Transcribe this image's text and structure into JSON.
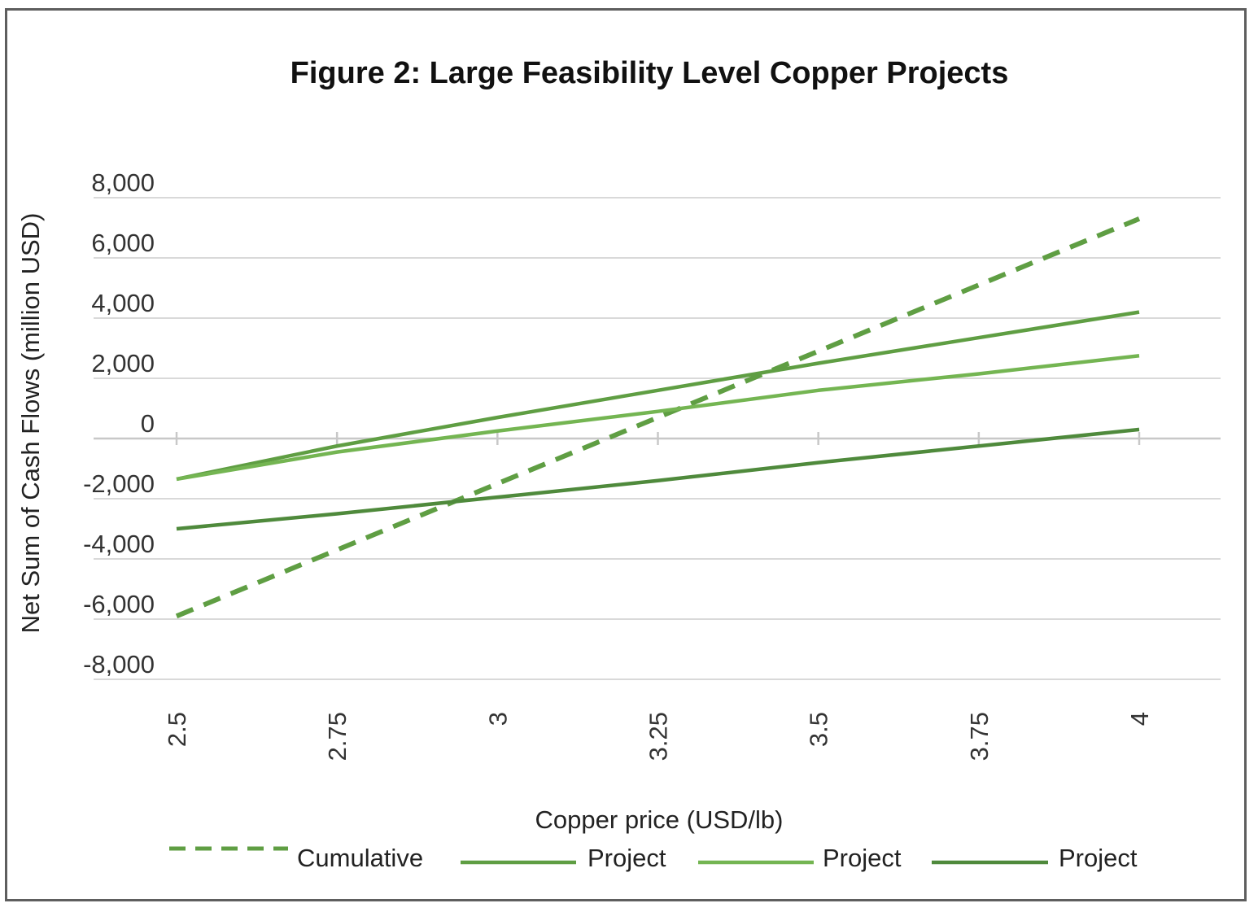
{
  "chart_data": {
    "type": "line",
    "title": "Figure 2: Large Feasibility Level Copper Projects",
    "xlabel": "Copper price (USD/lb)",
    "ylabel": "Net Sum of Cash Flows (million USD)",
    "x": [
      2.5,
      2.75,
      3,
      3.25,
      3.5,
      3.75,
      4
    ],
    "x_tick_labels": [
      "2.5",
      "2.75",
      "3",
      "3.25",
      "3.5",
      "3.75",
      "4"
    ],
    "y_tick_values": [
      8000,
      6000,
      4000,
      2000,
      0,
      -2000,
      -4000,
      -6000,
      -8000
    ],
    "y_tick_labels": [
      "8,000",
      "6,000",
      "4,000",
      "2,000",
      "0",
      "-2,000",
      "-4,000",
      "-6,000",
      "-8,000"
    ],
    "ylim": [
      -8000,
      8000
    ],
    "grid": true,
    "legend_position": "bottom",
    "series": [
      {
        "name": "Cumulative",
        "style": "dashed",
        "color": "#5f9e43",
        "values": [
          -5900,
          -3700,
          -1500,
          700,
          2900,
          5100,
          7300
        ]
      },
      {
        "name": "Project",
        "style": "solid",
        "color": "#5f9e43",
        "values": [
          -1350,
          -250,
          700,
          1600,
          2500,
          3350,
          4200
        ]
      },
      {
        "name": "Project",
        "style": "solid",
        "color": "#74b552",
        "values": [
          -1350,
          -450,
          250,
          900,
          1600,
          2150,
          2750
        ]
      },
      {
        "name": "Project",
        "style": "solid",
        "color": "#4f8a3c",
        "values": [
          -3000,
          -2500,
          -1950,
          -1400,
          -800,
          -250,
          300
        ]
      }
    ]
  }
}
